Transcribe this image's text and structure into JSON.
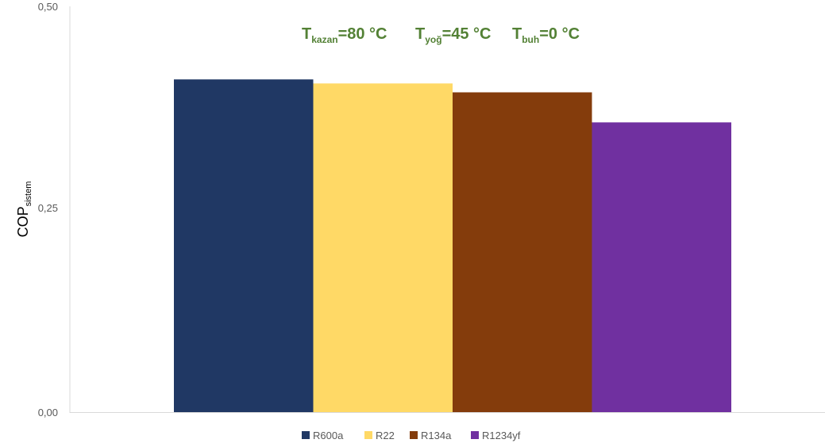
{
  "chart_data": {
    "type": "bar",
    "title": "",
    "xlabel": "",
    "ylabel": "COP",
    "ylabel_subscript": "sistem",
    "ylim": [
      0,
      0.5
    ],
    "yticks": [
      "0,00",
      "0,25",
      "0,50"
    ],
    "ytick_values": [
      0,
      0.25,
      0.5
    ],
    "grid": false,
    "legend_position": "bottom",
    "annotation": {
      "color": "#538135",
      "parts": [
        {
          "base": "T",
          "sub": "kazan",
          "text": "=80 °C"
        },
        {
          "base": "T",
          "sub": "yoğ",
          "text": "=45 °C"
        },
        {
          "base": "T",
          "sub": "buh",
          "text": "=0 °C"
        }
      ]
    },
    "series": [
      {
        "name": "R600a",
        "values": [
          0.41
        ],
        "color": "#203864"
      },
      {
        "name": "R22",
        "values": [
          0.405
        ],
        "color": "#FFD966"
      },
      {
        "name": "R134a",
        "values": [
          0.394
        ],
        "color": "#843C0C"
      },
      {
        "name": "R1234yf",
        "values": [
          0.357
        ],
        "color": "#7030A0"
      }
    ]
  }
}
